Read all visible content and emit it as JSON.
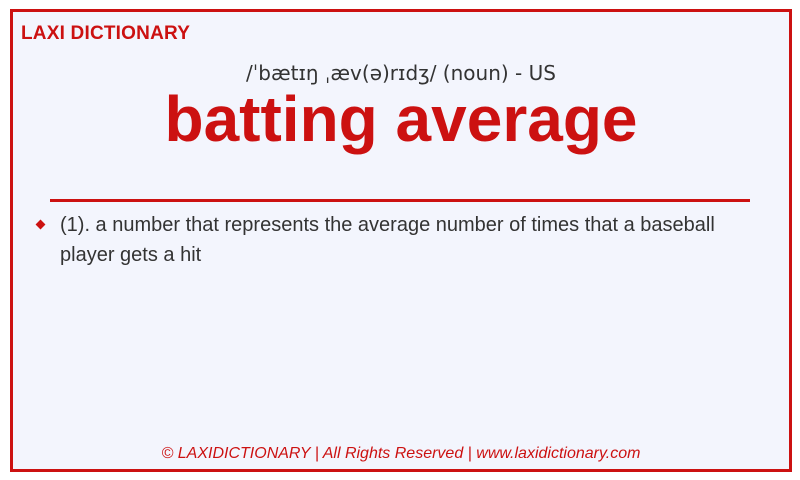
{
  "brand": "LAXI DICTIONARY",
  "entry": {
    "pronunciation": "/ˈbætɪŋ ˌæv(ə)rɪdʒ/ (noun) - US",
    "headword": "batting average",
    "definitions": [
      "(1). a number that represents the average number of times that a baseball player gets a hit"
    ]
  },
  "footer": "© LAXIDICTIONARY | All Rights Reserved | www.laxidictionary.com",
  "colors": {
    "accent": "#cc1111",
    "background": "#f3f5fd",
    "text": "#333333"
  }
}
